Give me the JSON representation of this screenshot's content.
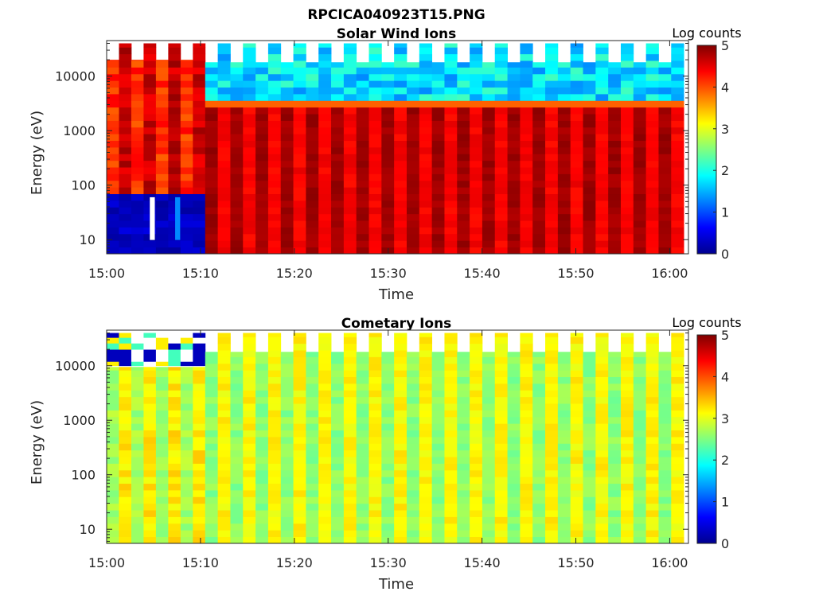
{
  "figure": {
    "title": "RPCICA040923T15.PNG"
  },
  "chart_data": [
    {
      "type": "heatmap",
      "title": "Solar Wind Ions",
      "xlabel": "Time",
      "ylabel": "Energy (eV)",
      "x_ticks": [
        "15:00",
        "15:10",
        "15:20",
        "15:30",
        "15:40",
        "15:50",
        "16:00"
      ],
      "x_range": [
        "15:00",
        "16:02"
      ],
      "y_scale": "log",
      "y_ticks": [
        "10",
        "100",
        "1000",
        "10000"
      ],
      "y_range": [
        5.5,
        45000
      ],
      "colorbar": {
        "label": "Log counts",
        "min": 0,
        "max": 5,
        "ticks": [
          "0",
          "1",
          "2",
          "3",
          "4",
          "5"
        ],
        "colormap": "jet"
      },
      "segments": [
        {
          "from": "15:00",
          "to": "15:10.5",
          "description_values": {
            "energy_above_75eV_log_counts": [
              3.8,
              4.5
            ],
            "energy_below_75eV_log_counts": 0.2,
            "top_energy_eV": [
              20000,
              40000
            ]
          }
        },
        {
          "from": "15:10.5",
          "to": "16:01.5",
          "description_values": {
            "energy_2800_to_20000eV_log_counts": [
              1.2,
              2.3
            ],
            "energy_below_2800eV_log_counts": [
              4.1,
              4.8
            ],
            "top_energy_eV": [
              18000,
              40000
            ]
          }
        }
      ]
    },
    {
      "type": "heatmap",
      "title": "Cometary Ions",
      "xlabel": "Time",
      "ylabel": "Energy (eV)",
      "x_ticks": [
        "15:00",
        "15:10",
        "15:20",
        "15:30",
        "15:40",
        "15:50",
        "16:00"
      ],
      "x_range": [
        "15:00",
        "16:02"
      ],
      "y_scale": "log",
      "y_ticks": [
        "10",
        "100",
        "1000",
        "10000"
      ],
      "y_range": [
        5.5,
        45000
      ],
      "colorbar": {
        "label": "Log counts",
        "min": 0,
        "max": 5,
        "ticks": [
          "0",
          "1",
          "2",
          "3",
          "4",
          "5"
        ],
        "colormap": "jet"
      },
      "segments": [
        {
          "from": "15:00",
          "to": "15:10.5",
          "description_values": {
            "bulk_log_counts": [
              2.4,
              3.3
            ]
          }
        },
        {
          "from": "15:10.5",
          "to": "16:01.5",
          "description_values": {
            "bulk_log_counts": [
              2.3,
              3.3
            ],
            "top_energy_eV": [
              18000,
              40000
            ]
          }
        }
      ]
    }
  ]
}
